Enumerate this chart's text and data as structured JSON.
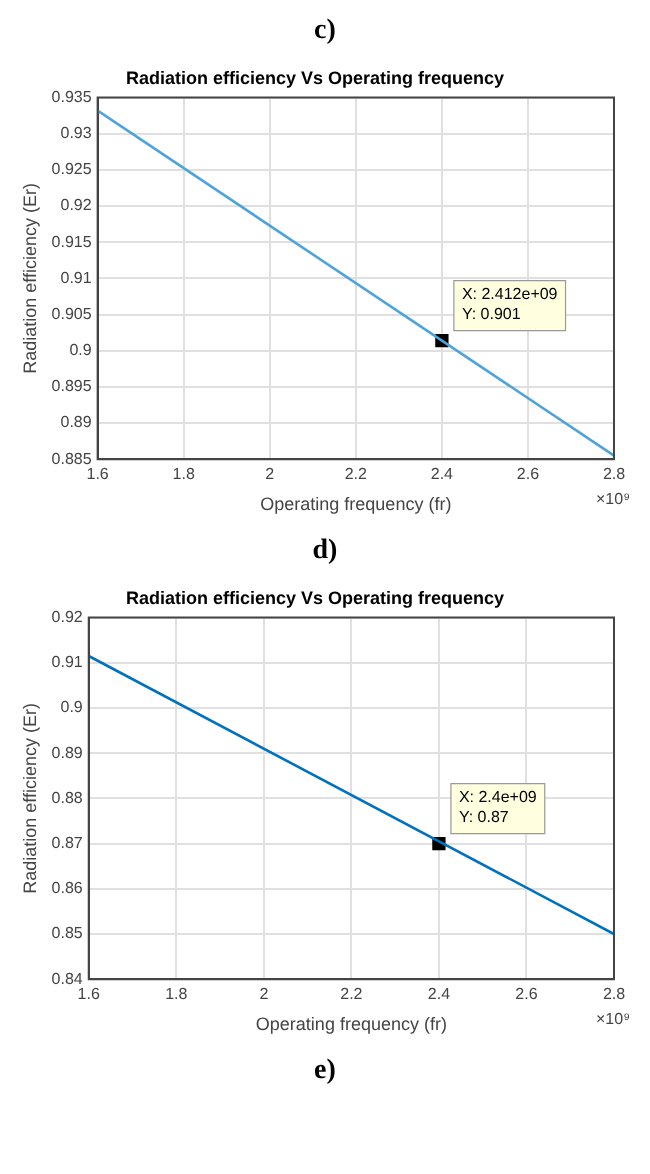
{
  "chart_data": [
    {
      "type": "line",
      "title": "Radiation efficiency Vs Operating frequency",
      "xlabel": "Operating frequency (fr)",
      "ylabel": "Radiation efficiency (Er)",
      "series": [
        {
          "type": "line",
          "color": "#4fa3d9",
          "x": [
            1.6,
            2.8
          ],
          "values": [
            0.9332,
            0.8855
          ],
          "marker": "none"
        },
        {
          "type": "scatter",
          "color": "#000000",
          "x": [
            2.4
          ],
          "values": [
            0.9014
          ],
          "marker": "square"
        }
      ],
      "xlim": [
        1.6,
        2.8
      ],
      "xticks": [
        1.6,
        1.8,
        2,
        2.2,
        2.4,
        2.6,
        2.8
      ],
      "ylim": [
        0.885,
        0.935
      ],
      "yticks": [
        0.885,
        0.89,
        0.895,
        0.9,
        0.905,
        0.91,
        0.915,
        0.92,
        0.925,
        0.93,
        0.935
      ],
      "grid": true,
      "annotations": [
        "c)",
        "×10⁹",
        {
          "text": "X: 2.412e+09\nY: 0.901",
          "x": 2.4,
          "y": 0.9014
        },
        "d)"
      ]
    },
    {
      "type": "line",
      "title": "Radiation efficiency Vs Operating frequency",
      "xlabel": "Operating frequency (fr)",
      "ylabel": "Radiation efficiency (Er)",
      "series": [
        {
          "type": "line",
          "color": "#0072bd",
          "x": [
            1.6,
            2.8
          ],
          "values": [
            0.9115,
            0.85
          ],
          "marker": "none"
        },
        {
          "type": "scatter",
          "color": "#000000",
          "x": [
            2.4
          ],
          "values": [
            0.87
          ],
          "marker": "square"
        }
      ],
      "xlim": [
        1.6,
        2.8
      ],
      "xticks": [
        1.6,
        1.8,
        2,
        2.2,
        2.4,
        2.6,
        2.8
      ],
      "ylim": [
        0.84,
        0.92
      ],
      "yticks": [
        0.84,
        0.85,
        0.86,
        0.87,
        0.88,
        0.89,
        0.9,
        0.91,
        0.92
      ],
      "grid": true,
      "annotations": [
        "×10⁹",
        {
          "text": "X: 2.4e+09\nY: 0.87",
          "x": 2.4,
          "y": 0.87
        },
        "e)"
      ]
    }
  ]
}
